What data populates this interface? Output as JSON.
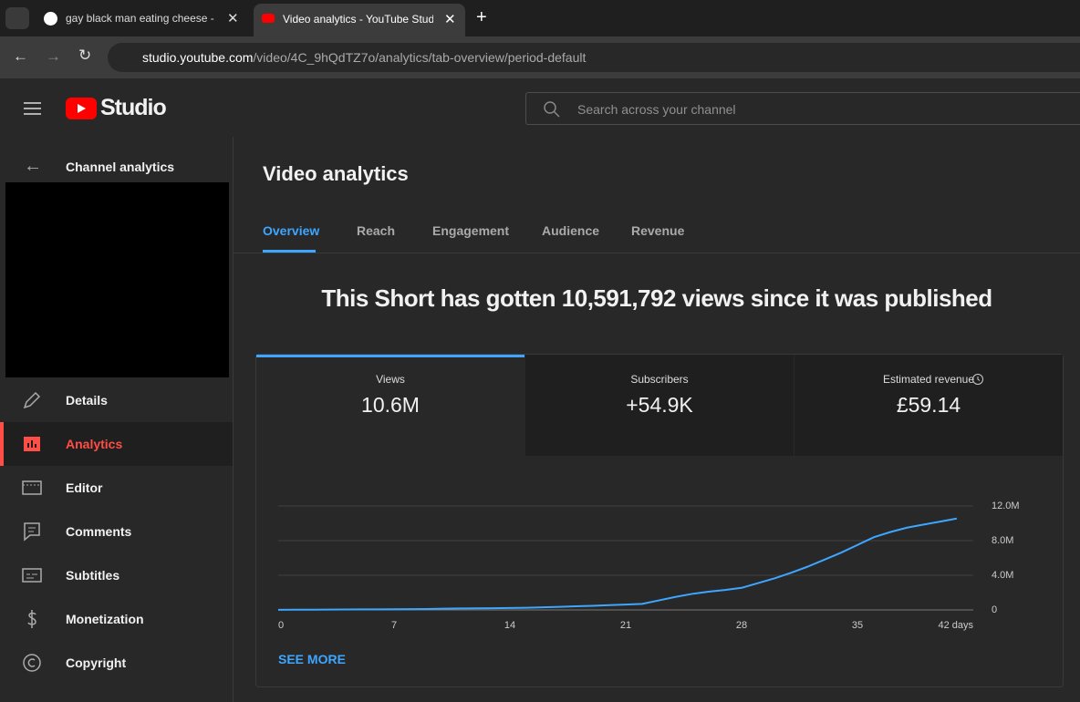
{
  "browser": {
    "tabs": [
      "gay black man eating cheese -",
      "Video analytics - YouTube Studi"
    ],
    "url": {
      "host": "studio.youtube.com",
      "path": "/video/4C_9hQdTZ7o/analytics/tab-overview/period-default"
    }
  },
  "header": {
    "logo": "Studio",
    "search_placeholder": "Search across your channel"
  },
  "sidebar": {
    "title": "Channel analytics",
    "items": [
      "Details",
      "Analytics",
      "Editor",
      "Comments",
      "Subtitles",
      "Monetization",
      "Copyright"
    ]
  },
  "main": {
    "title": "Video analytics",
    "tabs": [
      "Overview",
      "Reach",
      "Engagement",
      "Audience",
      "Revenue"
    ],
    "headline": "This Short has gotten 10,591,792 views since it was published",
    "metrics": [
      {
        "label": "Views",
        "value": "10.6M"
      },
      {
        "label": "Subscribers",
        "value": "+54.9K"
      },
      {
        "label": "Estimated revenue",
        "value": "£59.14"
      }
    ],
    "see_more": "SEE MORE"
  },
  "chart_data": {
    "type": "line",
    "color": "#3ea6ff",
    "x": [
      0,
      1,
      2,
      3,
      4,
      5,
      6,
      7,
      8,
      9,
      10,
      11,
      12,
      13,
      14,
      15,
      16,
      17,
      18,
      19,
      20,
      21,
      22,
      23,
      24,
      25,
      26,
      27,
      28,
      29,
      30,
      31,
      32,
      33,
      34,
      35,
      36,
      37,
      38,
      39,
      40,
      41
    ],
    "values": [
      10000,
      20000,
      30000,
      40000,
      50000,
      60000,
      70000,
      80000,
      90000,
      100000,
      150000,
      170000,
      190000,
      200000,
      220000,
      250000,
      300000,
      350000,
      420000,
      480000,
      550000,
      620000,
      700000,
      1100000,
      1500000,
      1850000,
      2100000,
      2300000,
      2550000,
      3100000,
      3650000,
      4300000,
      5000000,
      5800000,
      6600000,
      7500000,
      8400000,
      9000000,
      9500000,
      9850000,
      10200000,
      10550000
    ],
    "xlim": [
      0,
      42
    ],
    "xticks": [
      0,
      7,
      14,
      21,
      28,
      35,
      {
        "value": 42,
        "label": "42 days"
      }
    ],
    "ylim": [
      0,
      12000000
    ],
    "yticks": [
      0,
      {
        "value": 4000000,
        "label": "4.0M"
      },
      {
        "value": 8000000,
        "label": "8.0M"
      },
      {
        "value": 12000000,
        "label": "12.0M"
      }
    ],
    "grid": true
  }
}
